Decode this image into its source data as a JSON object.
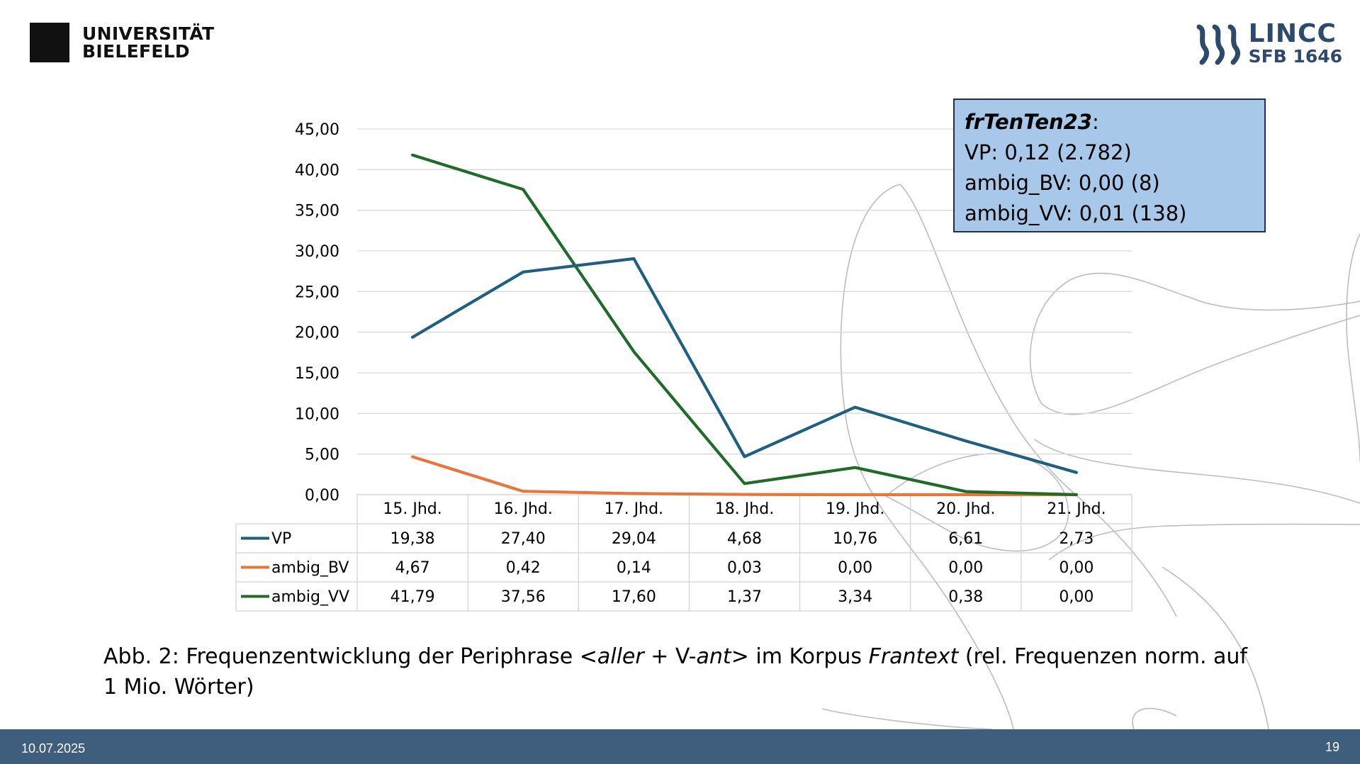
{
  "header": {
    "university_line1": "UNIVERSITÄT",
    "university_line2": "BIELEFELD",
    "lincc_name": "LINCC",
    "lincc_sub": "SFB 1646"
  },
  "infobox": {
    "corpus": "frTenTen23",
    "corpus_suffix": ":",
    "lines": [
      "VP: 0,12 (2.782)",
      "ambig_BV: 0,00 (8)",
      "ambig_VV: 0,01 (138)"
    ]
  },
  "caption": {
    "part1": "Abb. 2: Frequenzentwicklung der Periphrase <",
    "aller": "aller",
    "part2": " + V-",
    "ant": "ant",
    "part3": "> im Korpus ",
    "corpus": "Frantext",
    "part4": " (rel. Frequenzen norm. auf 1 Mio. Wörter)"
  },
  "footer": {
    "date": "10.07.2025",
    "page": "19"
  },
  "colors": {
    "vp": "#1f5f82",
    "ambig_bv": "#e8763a",
    "ambig_vv": "#1f6b2a",
    "footer": "#3f5e7e",
    "infobox": "#a8c8ea"
  },
  "chart_data": {
    "type": "line",
    "categories": [
      "15. Jhd.",
      "16. Jhd.",
      "17. Jhd.",
      "18. Jhd.",
      "19. Jhd.",
      "20. Jhd.",
      "21. Jhd."
    ],
    "series": [
      {
        "name": "VP",
        "key": "vp",
        "values": [
          19.38,
          27.4,
          29.04,
          4.68,
          10.76,
          6.61,
          2.73
        ],
        "labels": [
          "19,38",
          "27,40",
          "29,04",
          "4,68",
          "10,76",
          "6,61",
          "2,73"
        ]
      },
      {
        "name": "ambig_BV",
        "key": "ambig_bv",
        "values": [
          4.67,
          0.42,
          0.14,
          0.03,
          0.0,
          0.0,
          0.0
        ],
        "labels": [
          "4,67",
          "0,42",
          "0,14",
          "0,03",
          "0,00",
          "0,00",
          "0,00"
        ]
      },
      {
        "name": "ambig_VV",
        "key": "ambig_vv",
        "values": [
          41.79,
          37.56,
          17.6,
          1.37,
          3.34,
          0.38,
          0.0
        ],
        "labels": [
          "41,79",
          "37,56",
          "17,60",
          "1,37",
          "3,34",
          "0,38",
          "0,00"
        ]
      }
    ],
    "yticks": [
      "0,00",
      "5,00",
      "10,00",
      "15,00",
      "20,00",
      "25,00",
      "30,00",
      "35,00",
      "40,00",
      "45,00"
    ],
    "ylim": [
      0,
      45
    ],
    "grid": true,
    "legend": "data-table"
  }
}
